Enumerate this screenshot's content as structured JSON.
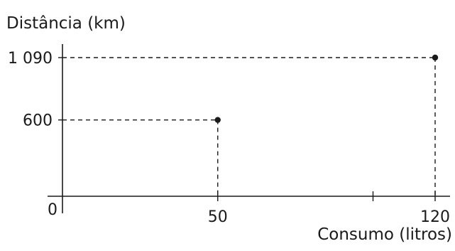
{
  "chart_data": {
    "type": "scatter",
    "title": "",
    "ylabel": "Distância (km)",
    "xlabel": "Consumo (litros)",
    "origin_label": "0",
    "points": [
      {
        "x": 50,
        "y": 600
      },
      {
        "x": 120,
        "y": 1090
      }
    ],
    "x_ticks": [
      {
        "value": 50,
        "label": "50"
      },
      {
        "value": 100,
        "label": ""
      },
      {
        "value": 120,
        "label": "120"
      }
    ],
    "y_ticks": [
      {
        "value": 600,
        "label": "600"
      },
      {
        "value": 1090,
        "label": "1 090"
      }
    ],
    "xlim": [
      0,
      120
    ],
    "ylim": [
      0,
      1090
    ],
    "grid": false,
    "guide_lines": "dashed",
    "colors": {
      "ink": "#1a1a1a",
      "background": "#ffffff"
    }
  }
}
